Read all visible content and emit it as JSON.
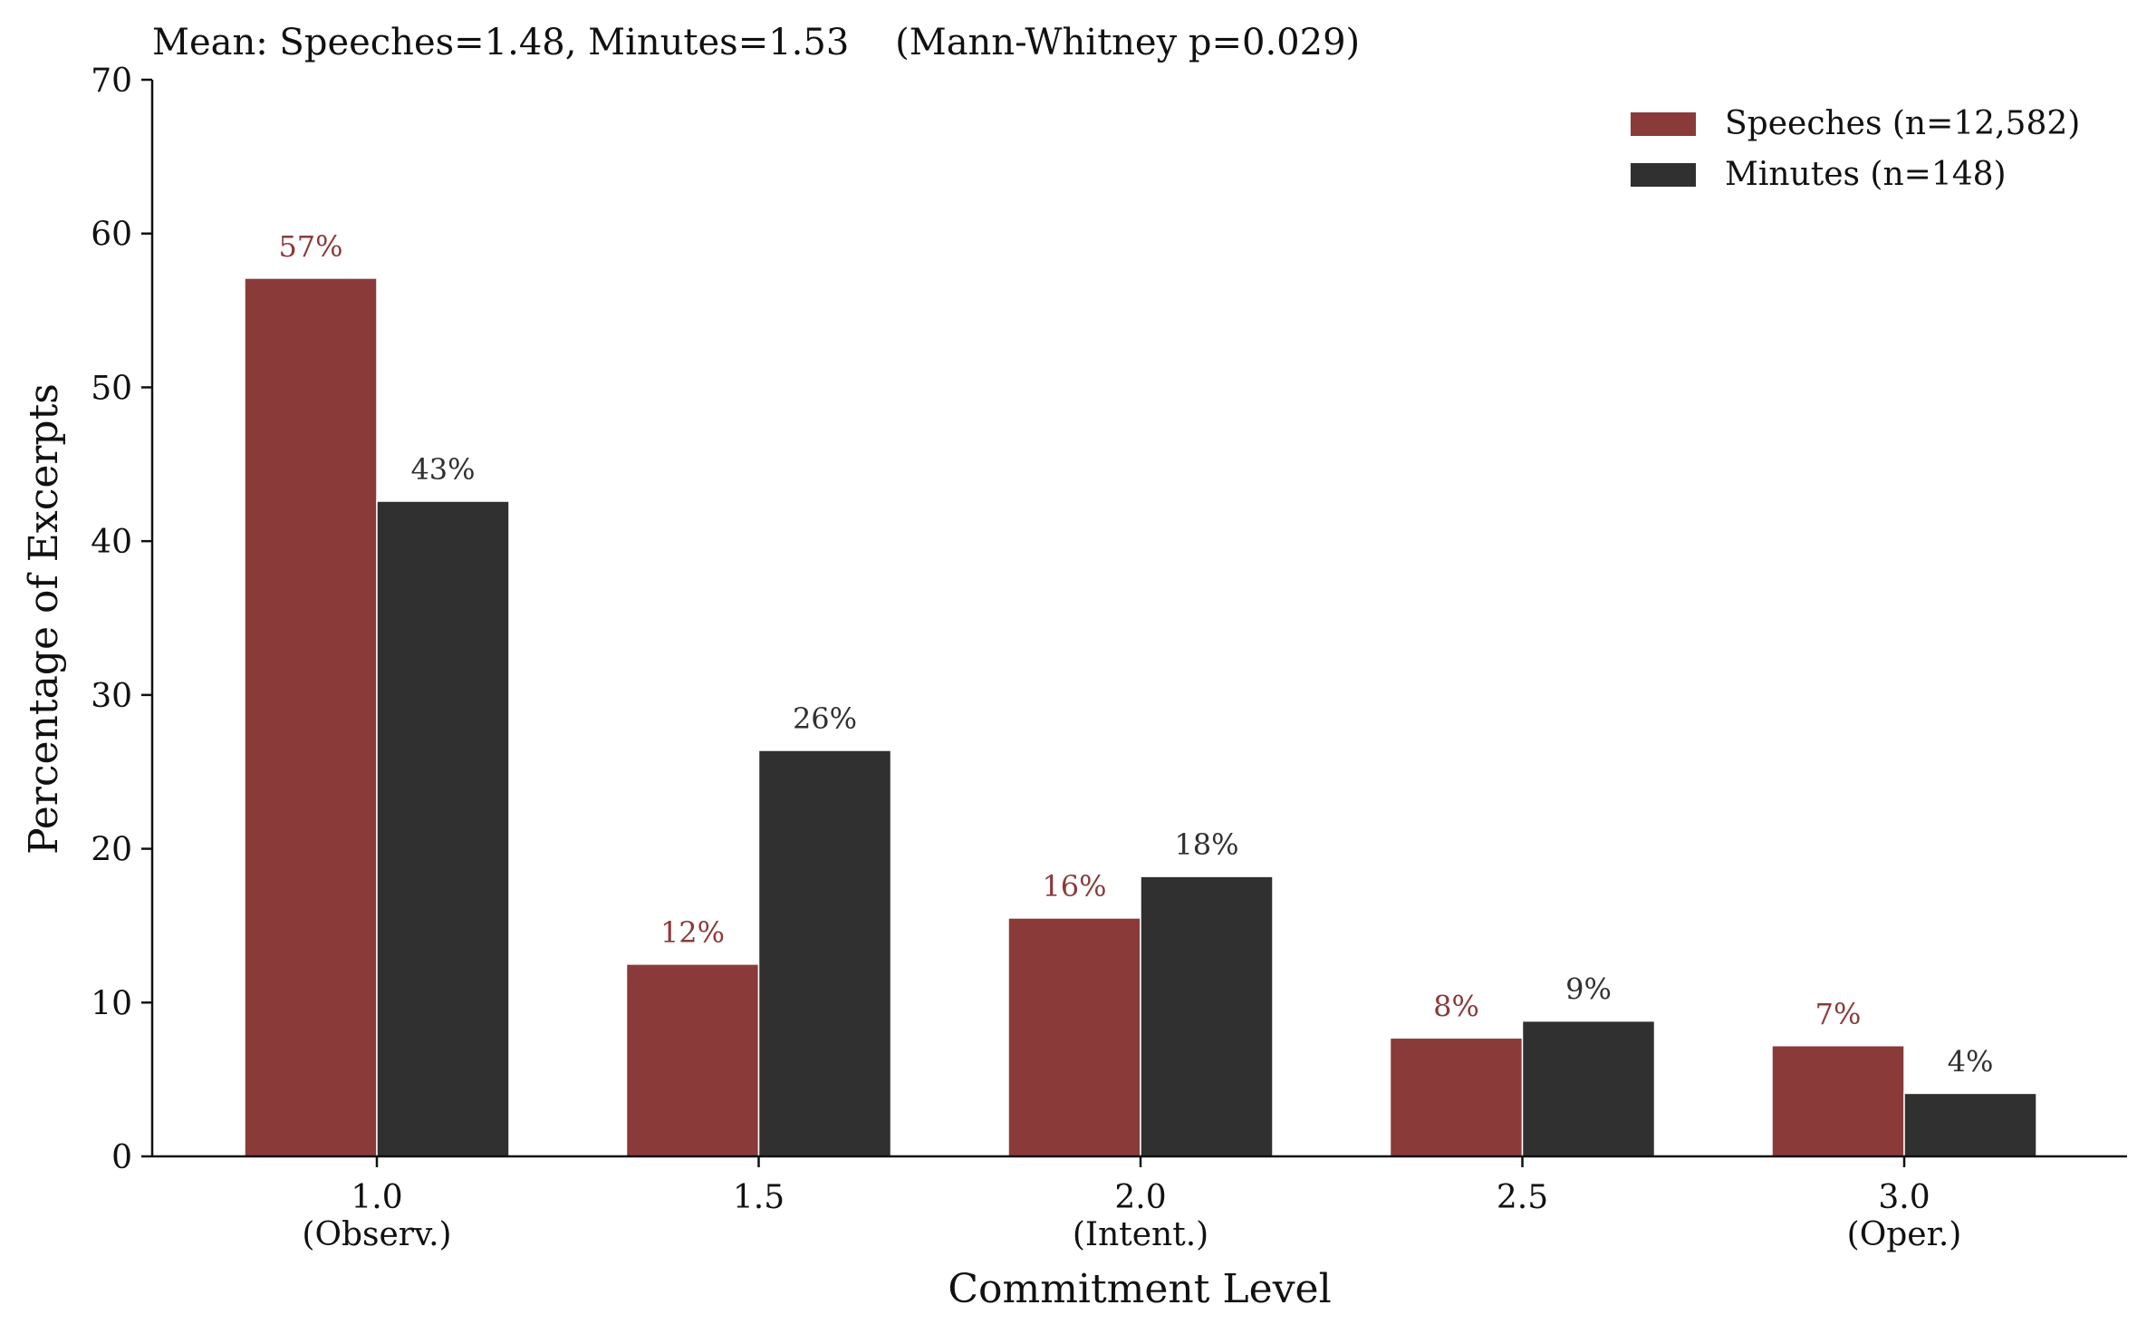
{
  "chart_data": {
    "type": "bar",
    "title": "Mean: Speeches=1.48, Minutes=1.53    (Mann-Whitney p=0.029)",
    "xlabel": "Commitment Level",
    "ylabel": "Percentage of Excerpts",
    "ylim": [
      0,
      70
    ],
    "yticks": [
      0,
      10,
      20,
      30,
      40,
      50,
      60,
      70
    ],
    "categories": [
      "1.0",
      "1.5",
      "2.0",
      "2.5",
      "3.0"
    ],
    "category_sublabels": [
      "(Observ.)",
      "",
      "(Intent.)",
      "",
      "(Oper.)"
    ],
    "series": [
      {
        "name": "Speeches (n=12,582)",
        "color": "#8B3A3A",
        "values": [
          57.1,
          12.5,
          15.5,
          7.7,
          7.2
        ],
        "labels": [
          "57%",
          "12%",
          "16%",
          "8%",
          "7%"
        ]
      },
      {
        "name": "Minutes (n=148)",
        "color": "#303030",
        "values": [
          42.6,
          26.4,
          18.2,
          8.8,
          4.1
        ],
        "labels": [
          "43%",
          "26%",
          "18%",
          "9%",
          "4%"
        ]
      }
    ],
    "legend_position": "top-right",
    "grid": false
  }
}
